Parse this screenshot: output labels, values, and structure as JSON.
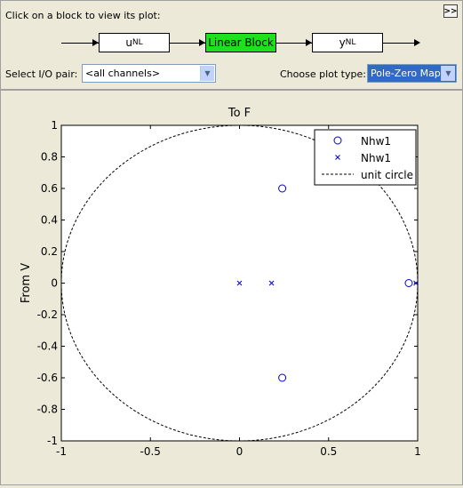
{
  "header": {
    "instruction": "Click on a block to view its plot:",
    "expand_label": ">>"
  },
  "blocks": {
    "input": {
      "main": "u",
      "sub": "NL"
    },
    "linear": {
      "label": "Linear Block"
    },
    "output": {
      "main": "y",
      "sub": "NL"
    }
  },
  "controls": {
    "io_label": "Select I/O pair:",
    "io_value": "<all channels>",
    "plot_type_label": "Choose plot type:",
    "plot_type_value": "Pole-Zero Map"
  },
  "chart_data": {
    "type": "scatter",
    "title": "To F",
    "xlabel": "",
    "ylabel": "From V",
    "xlim": [
      -1,
      1
    ],
    "ylim": [
      -1,
      1
    ],
    "xticks": [
      "-1",
      "-0.5",
      "0",
      "0.5",
      "1"
    ],
    "yticks": [
      "1",
      "0.8",
      "0.6",
      "0.4",
      "0.2",
      "0",
      "-0.2",
      "-0.4",
      "-0.6",
      "-0.8",
      "-1"
    ],
    "zeros": [
      [
        0.24,
        0.6
      ],
      [
        0.24,
        -0.6
      ],
      [
        0.95,
        0.0
      ]
    ],
    "poles": [
      [
        0.0,
        0.0
      ],
      [
        0.18,
        0.0
      ],
      [
        0.99,
        0.0
      ]
    ],
    "legend": [
      {
        "marker": "circle",
        "label": "Nhw1"
      },
      {
        "marker": "x",
        "label": "Nhw1"
      },
      {
        "marker": "dashed",
        "label": "unit circle"
      }
    ],
    "legend_position": "top-right",
    "unit_circle": true,
    "colors": {
      "markers": "#0000cc",
      "circle": "#000000"
    }
  }
}
